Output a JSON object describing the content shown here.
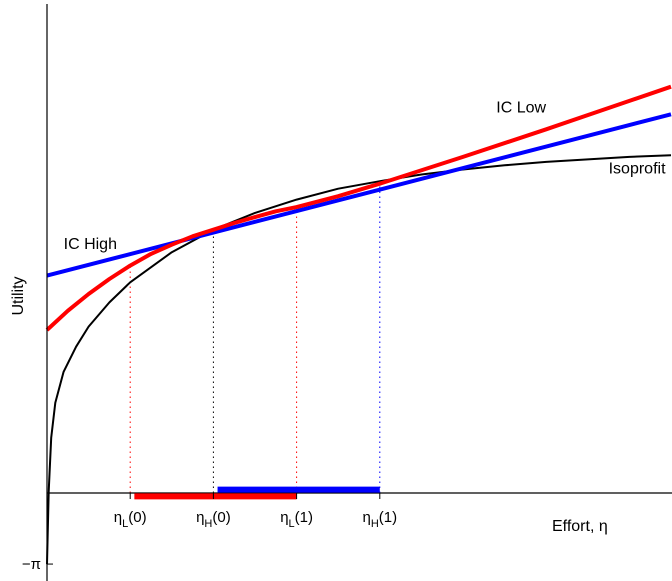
{
  "chart_data": {
    "type": "line",
    "title": "",
    "xlabel": "Effort, η",
    "ylabel": "Utility",
    "xlim": [
      0,
      7.5
    ],
    "ylim": [
      -1,
      5
    ],
    "y_ticks": [
      {
        "value": -0.85,
        "label": "−π"
      }
    ],
    "x_ticks": [
      {
        "value": 1.0,
        "base": "η",
        "sub": "L",
        "suffix": "(0)"
      },
      {
        "value": 2.0,
        "base": "η",
        "sub": "H",
        "suffix": "(0)"
      },
      {
        "value": 3.0,
        "base": "η",
        "sub": "L",
        "suffix": "(1)"
      },
      {
        "value": 4.0,
        "base": "η",
        "sub": "H",
        "suffix": "(1)"
      }
    ],
    "series": [
      {
        "name": "Isoprofit",
        "color": "#000000",
        "x": [
          0.0,
          0.02,
          0.05,
          0.1,
          0.2,
          0.35,
          0.5,
          0.75,
          1.0,
          1.5,
          2.0,
          2.5,
          3.0,
          3.5,
          4.0,
          4.5,
          5.0,
          5.5,
          6.0,
          6.5,
          7.0,
          7.5
        ],
        "y": [
          -0.85,
          0.02,
          0.66,
          1.08,
          1.45,
          1.75,
          1.99,
          2.28,
          2.52,
          2.88,
          3.15,
          3.35,
          3.51,
          3.64,
          3.73,
          3.81,
          3.87,
          3.92,
          3.96,
          3.99,
          4.02,
          4.04
        ]
      },
      {
        "name": "IC High",
        "color": "#0000ff",
        "x": [
          0.0,
          7.5
        ],
        "y": [
          2.6,
          4.53
        ]
      },
      {
        "name": "IC Low",
        "color": "#ff0000",
        "x": [
          0.0,
          0.25,
          0.5,
          0.75,
          1.0,
          1.25,
          1.5,
          1.75,
          2.0,
          2.25,
          2.5,
          2.75,
          3.0,
          3.5,
          4.0,
          5.0,
          6.0,
          7.0,
          7.5
        ],
        "y": [
          1.95,
          2.18,
          2.38,
          2.56,
          2.72,
          2.86,
          2.97,
          3.07,
          3.15,
          3.23,
          3.3,
          3.37,
          3.42,
          3.55,
          3.7,
          4.02,
          4.35,
          4.69,
          4.86
        ]
      }
    ],
    "vlines": [
      {
        "x": 1.0,
        "y_top": 2.72,
        "color": "#ff0000"
      },
      {
        "x": 2.0,
        "y_top": 3.15,
        "color": "#000000"
      },
      {
        "x": 3.0,
        "y_top": 3.42,
        "color": "#ff0000"
      },
      {
        "x": 4.0,
        "y_top": 3.73,
        "color": "#0000ff"
      }
    ],
    "bars": [
      {
        "x_start": 1.05,
        "x_end": 3.0,
        "y": -0.04,
        "color": "#ff0000"
      },
      {
        "x_start": 2.05,
        "x_end": 4.0,
        "y": 0.04,
        "color": "#0000ff"
      }
    ],
    "annotations": [
      {
        "text": "IC Low",
        "x": 5.4,
        "y": 4.55
      },
      {
        "text": "Isoprofit",
        "x": 6.75,
        "y": 3.82
      },
      {
        "text": "IC High",
        "x": 0.2,
        "y": 2.92
      }
    ],
    "grid": false,
    "legend": "none"
  }
}
